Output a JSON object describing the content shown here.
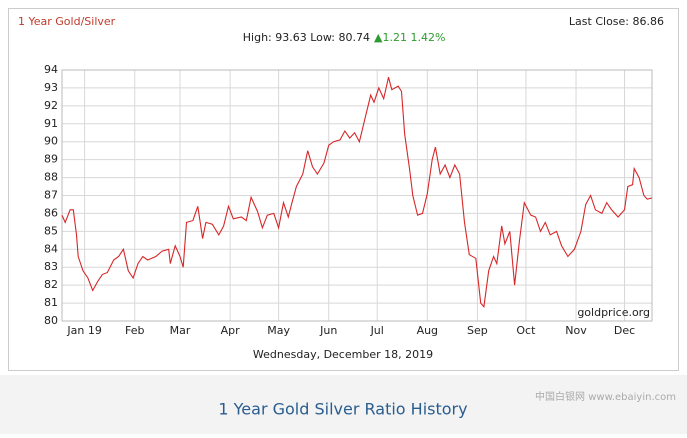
{
  "chart_data": {
    "type": "line",
    "title": "1 Year Gold/Silver",
    "last_close": "Last Close: 86.86",
    "summary": "High: 93.63 Low: 80.74",
    "change": "▲1.21 1.42%",
    "source": "goldprice.org",
    "date": "Wednesday, December 18, 2019",
    "caption": "1 Year Gold Silver Ratio History",
    "watermark": "中国白银网 www.ebaiyin.com",
    "color": "#d62728",
    "grid": true,
    "xlim": [
      0,
      365
    ],
    "xticks": [
      {
        "value": 14,
        "label": "Jan 19"
      },
      {
        "value": 45,
        "label": "Feb"
      },
      {
        "value": 73,
        "label": "Mar"
      },
      {
        "value": 104,
        "label": "Apr"
      },
      {
        "value": 134,
        "label": "May"
      },
      {
        "value": 165,
        "label": "Jun"
      },
      {
        "value": 195,
        "label": "Jul"
      },
      {
        "value": 226,
        "label": "Aug"
      },
      {
        "value": 257,
        "label": "Sep"
      },
      {
        "value": 287,
        "label": "Oct"
      },
      {
        "value": 318,
        "label": "Nov"
      },
      {
        "value": 348,
        "label": "Dec"
      }
    ],
    "ylim": [
      80,
      94
    ],
    "yticks": [
      80,
      81,
      82,
      83,
      84,
      85,
      86,
      87,
      88,
      89,
      90,
      91,
      92,
      93,
      94
    ],
    "x": [
      0,
      2,
      5,
      7,
      9,
      10,
      13,
      16,
      19,
      22,
      25,
      28,
      32,
      35,
      38,
      41,
      44,
      47,
      50,
      53,
      58,
      62,
      66,
      67,
      70,
      73,
      75,
      77,
      81,
      84,
      87,
      89,
      93,
      97,
      100,
      103,
      106,
      111,
      114,
      117,
      121,
      124,
      127,
      131,
      134,
      137,
      140,
      142,
      145,
      149,
      152,
      155,
      158,
      162,
      165,
      168,
      172,
      175,
      178,
      181,
      184,
      188,
      191,
      193,
      196,
      199,
      202,
      204,
      208,
      210,
      212,
      215,
      217,
      220,
      223,
      226,
      229,
      231,
      234,
      237,
      240,
      243,
      246,
      249,
      252,
      256,
      259,
      261,
      264,
      267,
      269,
      272,
      274,
      277,
      280,
      283,
      286,
      290,
      293,
      296,
      299,
      302,
      306,
      309,
      313,
      317,
      321,
      324,
      327,
      330,
      334,
      337,
      340,
      344,
      348,
      350,
      353,
      354,
      357,
      360,
      362,
      365
    ],
    "values": [
      85.9,
      85.5,
      86.2,
      86.2,
      84.8,
      83.6,
      82.8,
      82.4,
      81.7,
      82.2,
      82.6,
      82.7,
      83.4,
      83.6,
      84.0,
      82.8,
      82.4,
      83.2,
      83.6,
      83.4,
      83.6,
      83.9,
      84.0,
      83.2,
      84.2,
      83.6,
      83.0,
      85.5,
      85.6,
      86.4,
      84.6,
      85.5,
      85.4,
      84.8,
      85.3,
      86.4,
      85.7,
      85.8,
      85.6,
      86.9,
      86.1,
      85.2,
      85.9,
      86.0,
      85.2,
      86.6,
      85.8,
      86.5,
      87.5,
      88.2,
      89.5,
      88.6,
      88.2,
      88.8,
      89.8,
      90.0,
      90.1,
      90.6,
      90.2,
      90.5,
      90.0,
      91.5,
      92.6,
      92.2,
      93.0,
      92.4,
      93.6,
      92.9,
      93.1,
      92.8,
      90.4,
      88.5,
      87.0,
      85.9,
      86.0,
      87.1,
      89.0,
      89.7,
      88.2,
      88.7,
      88.0,
      88.7,
      88.2,
      85.5,
      83.7,
      83.5,
      81.0,
      80.8,
      82.8,
      83.6,
      83.2,
      85.3,
      84.3,
      85.0,
      82.0,
      84.5,
      86.6,
      85.9,
      85.8,
      85.0,
      85.5,
      84.8,
      85.0,
      84.2,
      83.6,
      84.0,
      85.0,
      86.5,
      87.0,
      86.2,
      86.0,
      86.6,
      86.2,
      85.8,
      86.2,
      87.5,
      87.6,
      88.5,
      88.0,
      87.0,
      86.8,
      86.86
    ]
  }
}
